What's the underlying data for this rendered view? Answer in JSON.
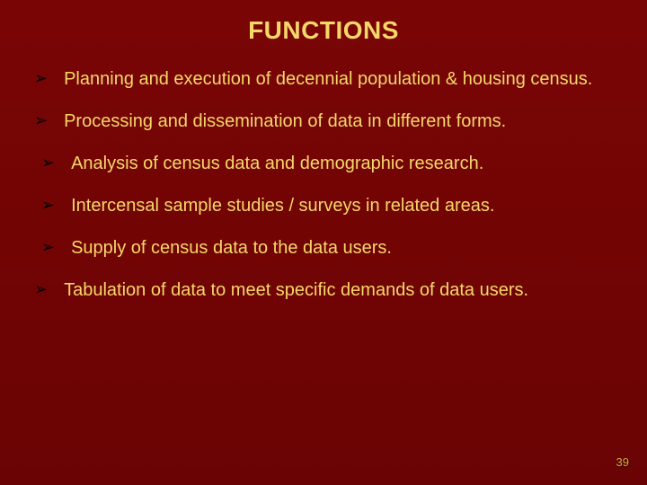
{
  "slide": {
    "title": "FUNCTIONS",
    "bullets": [
      {
        "text": "Planning and execution of decennial population & housing census.",
        "indent": 1
      },
      {
        "text": "Processing and dissemination of data in different forms.",
        "indent": 1
      },
      {
        "text": "Analysis of census data and demographic research.",
        "indent": 2
      },
      {
        "text": "Intercensal sample studies / surveys in related areas.",
        "indent": 2
      },
      {
        "text": "Supply of census data to the data users.",
        "indent": 2
      },
      {
        "text": "Tabulation  of  data  to  meet  specific demands  of data users.",
        "indent": 1
      }
    ],
    "page_number": "39"
  },
  "style": {
    "background_color_top": "#7a0505",
    "background_color_bottom": "#6a0404",
    "title_color": "#f5d76a",
    "title_fontsize": 28,
    "bullet_text_color": "#f5d76a",
    "bullet_text_fontsize": 20,
    "bullet_marker_color": "#000000",
    "bullet_marker": "➢",
    "page_number_color": "#d4a840",
    "page_number_fontsize": 13,
    "font_family": "Verdana"
  }
}
